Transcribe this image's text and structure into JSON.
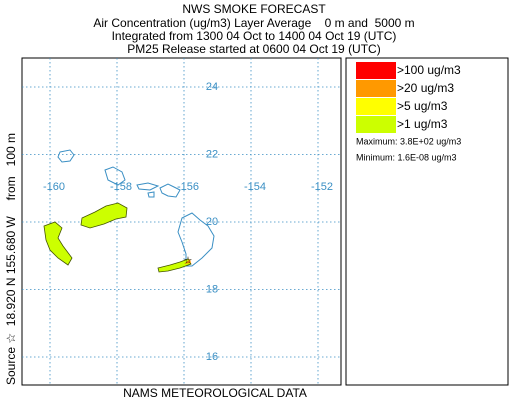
{
  "title": "NWS SMOKE FORECAST",
  "subtitle_lines": [
    "Air Concentration (ug/m3) Layer Average    0 m and  5000 m",
    "Integrated from 1300 04 Oct to 1400 04 Oct 19 (UTC)",
    "PM25 Release started at 0600 04 Oct 19 (UTC)"
  ],
  "source_label": "Source ☆  18.920 N 155.680 W",
  "height_label": "from   100 m",
  "footer": "NAMS METEOROLOGICAL DATA",
  "map": {
    "lat_lines": [
      24,
      22,
      20,
      18,
      16
    ],
    "lon_lines": [
      -160,
      -158,
      -156,
      -154,
      -152
    ]
  },
  "legend": {
    "entries": [
      {
        "label": ">100 ug/m3",
        "color": "#ff0000"
      },
      {
        "label": ">20 ug/m3",
        "color": "#ff9900"
      },
      {
        "label": ">5 ug/m3",
        "color": "#ffff00"
      },
      {
        "label": ">1 ug/m3",
        "color": "#ccff00"
      }
    ],
    "maximum": "Maximum: 3.8E+02 ug/m3",
    "minimum": "Minimum: 1.6E-08 ug/m3"
  }
}
